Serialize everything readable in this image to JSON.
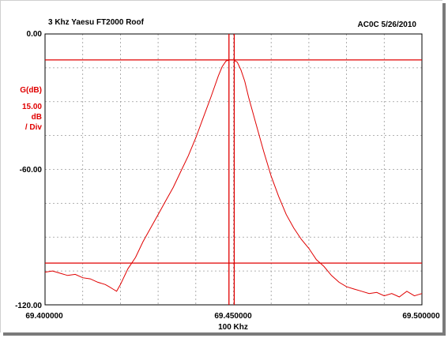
{
  "chart_data": {
    "type": "line",
    "title": "3 Khz Yaesu FT2000 Roof",
    "annotation_right": "AC0C 5/26/2010",
    "ylabel_lines": [
      "G(dB)",
      "15.00",
      "dB",
      "/ Div"
    ],
    "xlabel": "100 Khz",
    "x_ticks": [
      "69.400000",
      "69.450000",
      "69.500000"
    ],
    "y_ticks": [
      "0.00",
      "-60.00",
      "-120.00"
    ],
    "xlim": [
      69.4,
      69.5
    ],
    "ylim": [
      -120,
      0
    ],
    "grid": "dashed",
    "colors": {
      "trace": "#e00000",
      "markers": "#e00000",
      "axis_text": "#000000",
      "ylabel_text": "#e00000"
    },
    "markers": {
      "vertical_x": [
        69.4488,
        69.4502
      ],
      "horizontal_y": [
        -11.5,
        -101.5
      ]
    },
    "series": [
      {
        "x": [
          69.4,
          69.402,
          69.404,
          69.406,
          69.408,
          69.41,
          69.412,
          69.414,
          69.416,
          69.417,
          69.418,
          69.419,
          69.42,
          69.422,
          69.424,
          69.426,
          69.428,
          69.43,
          69.432,
          69.434,
          69.436,
          69.438,
          69.44,
          69.442,
          69.444,
          69.446,
          69.447,
          69.448,
          69.449,
          69.45,
          69.451,
          69.452,
          69.453,
          69.454,
          69.456,
          69.458,
          69.46,
          69.462,
          69.464,
          69.466,
          69.468,
          69.47,
          69.472,
          69.474,
          69.476,
          69.478,
          69.48,
          69.482,
          69.484,
          69.486,
          69.488,
          69.49,
          69.492,
          69.494,
          69.496,
          69.498,
          69.5
        ],
        "y": [
          -105.5,
          -105,
          -106,
          -107,
          -106.5,
          -108,
          -108.5,
          -110,
          -111,
          -112,
          -113,
          -114,
          -111,
          -104,
          -99,
          -92,
          -86,
          -80,
          -74,
          -68,
          -61,
          -54,
          -46,
          -37,
          -28,
          -18.5,
          -14.5,
          -12,
          -11.5,
          -11.5,
          -12.5,
          -16,
          -21,
          -28,
          -40,
          -52,
          -63,
          -72,
          -80,
          -86,
          -91,
          -95,
          -100,
          -103,
          -107,
          -110,
          -112,
          -113,
          -114,
          -115,
          -114.5,
          -116,
          -115,
          -116.5,
          -114,
          -116,
          -115
        ]
      }
    ]
  }
}
